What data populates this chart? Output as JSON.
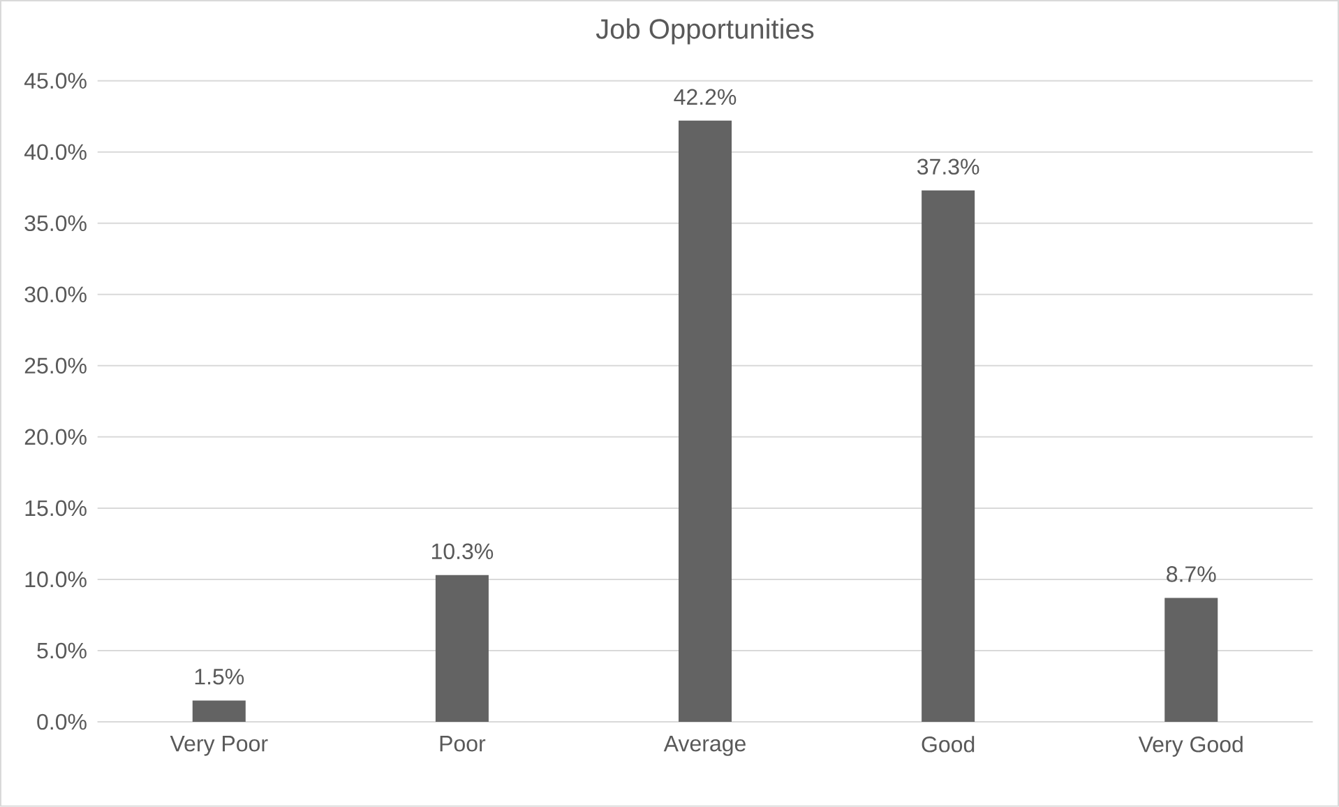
{
  "chart_data": {
    "type": "bar",
    "title": "Job Opportunities",
    "categories": [
      "Very Poor",
      "Poor",
      "Average",
      "Good",
      "Very Good"
    ],
    "values": [
      1.5,
      10.3,
      42.2,
      37.3,
      8.7
    ],
    "value_labels": [
      "1.5%",
      "10.3%",
      "42.2%",
      "37.3%",
      "8.7%"
    ],
    "color": "#636363",
    "ylim": [
      0,
      45
    ],
    "yticks": [
      {
        "value": 0,
        "label": "0.0%"
      },
      {
        "value": 5,
        "label": "5.0%"
      },
      {
        "value": 10,
        "label": "10.0%"
      },
      {
        "value": 15,
        "label": "15.0%"
      },
      {
        "value": 20,
        "label": "20.0%"
      },
      {
        "value": 25,
        "label": "25.0%"
      },
      {
        "value": 30,
        "label": "30.0%"
      },
      {
        "value": 35,
        "label": "35.0%"
      },
      {
        "value": 40,
        "label": "40.0%"
      },
      {
        "value": 45,
        "label": "45.0%"
      }
    ],
    "grid": "y"
  }
}
